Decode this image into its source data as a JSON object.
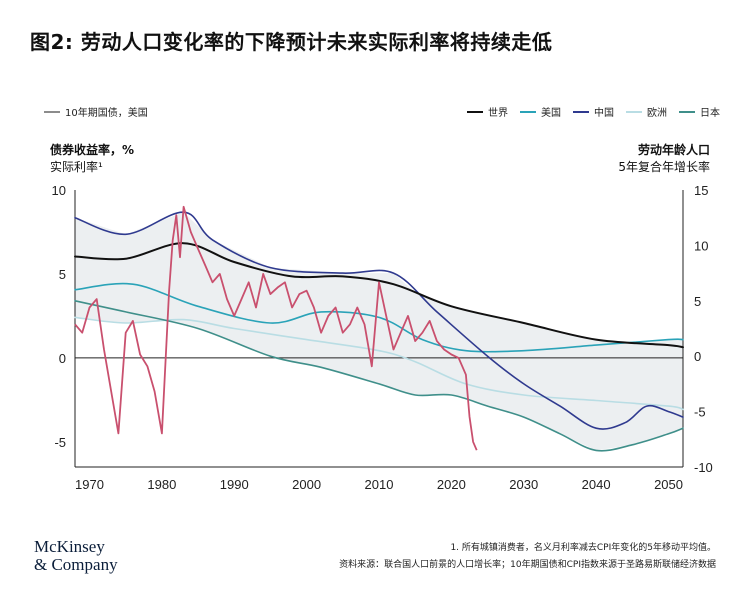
{
  "title": "图2: 劳动人口变化率的下降预计未来实际利率将持续走低",
  "legend_left": {
    "label": "10年期国债，美国",
    "color": "#8c8c8c"
  },
  "legend_right": [
    {
      "label": "世界",
      "color": "#111111"
    },
    {
      "label": "美国",
      "color": "#2aa3b8"
    },
    {
      "label": "中国",
      "color": "#2f3a8f"
    },
    {
      "label": "欧洲",
      "color": "#b9dde4"
    },
    {
      "label": "日本",
      "color": "#3f8f8a"
    }
  ],
  "left_axis_title": {
    "line1": "债券收益率，%",
    "line2": "实际利率¹"
  },
  "right_axis_title": {
    "line1": "劳动年龄人口",
    "line2": "5年复合年增长率"
  },
  "footnote": "1. 所有城镇消费者，名义月利率减去CPI年变化的5年移动平均值。",
  "source": "资料来源：联合国人口前景的人口增长率；10年期国债和CPI指数来源于圣路易斯联储经济数据",
  "logo": {
    "line1": "McKinsey",
    "line2": "& Company"
  },
  "chart_data": {
    "type": "line",
    "x_ticks": [
      1970,
      1980,
      1990,
      2000,
      2010,
      2020,
      2030,
      2040,
      2050
    ],
    "xlim": [
      1968,
      2052
    ],
    "left_axis": {
      "title": "债券收益率，%",
      "subtitle": "实际利率¹",
      "ylim": [
        -6.5,
        10
      ],
      "ticks": [
        10,
        5,
        0,
        -5
      ]
    },
    "right_axis": {
      "title": "劳动年龄人口",
      "subtitle": "5年复合年增长率",
      "ylim": [
        -10,
        15
      ],
      "ticks": [
        15,
        10,
        5,
        0,
        -5,
        -10
      ]
    },
    "series": [
      {
        "name": "10年期国债，美国",
        "axis": "left",
        "color": "#c9506e",
        "x": [
          1968,
          1969,
          1970,
          1971,
          1972,
          1973,
          1974,
          1975,
          1976,
          1977,
          1978,
          1979,
          1980,
          1981,
          1981.5,
          1982,
          1982.5,
          1983,
          1984,
          1985,
          1986,
          1987,
          1988,
          1989,
          1990,
          1991,
          1992,
          1993,
          1994,
          1995,
          1996,
          1997,
          1998,
          1999,
          2000,
          2001,
          2002,
          2003,
          2004,
          2005,
          2006,
          2007,
          2008,
          2009,
          2010,
          2011,
          2012,
          2013,
          2014,
          2015,
          2016,
          2017,
          2018,
          2019,
          2020,
          2021,
          2022,
          2022.5,
          2023,
          2023.5
        ],
        "y": [
          2.0,
          1.5,
          3.0,
          3.5,
          0.5,
          -2.0,
          -4.5,
          1.5,
          2.2,
          0.2,
          -0.5,
          -2.0,
          -4.5,
          4.0,
          7.0,
          8.5,
          6.0,
          9.0,
          7.5,
          6.5,
          5.5,
          4.5,
          5.0,
          3.5,
          2.5,
          3.5,
          4.5,
          3.0,
          5.0,
          3.8,
          4.2,
          4.5,
          3.0,
          3.8,
          4.0,
          3.0,
          1.5,
          2.5,
          3.0,
          1.5,
          2.0,
          3.0,
          2.0,
          -0.5,
          4.5,
          2.5,
          0.5,
          1.5,
          2.5,
          1.0,
          1.5,
          2.2,
          1.0,
          0.5,
          0.2,
          0.0,
          -1.0,
          -3.5,
          -5.0,
          -5.5
        ]
      },
      {
        "name": "世界",
        "axis": "right",
        "color": "#111111",
        "x": [
          1968,
          1975,
          1983,
          1990,
          1998,
          2005,
          2012,
          2020,
          2030,
          2040,
          2050,
          2052
        ],
        "y": [
          9.0,
          8.8,
          10.2,
          8.5,
          7.2,
          7.2,
          6.5,
          4.5,
          3.0,
          1.5,
          1.0,
          0.8
        ]
      },
      {
        "name": "美国",
        "axis": "right",
        "color": "#2aa3b8",
        "x": [
          1968,
          1976,
          1985,
          1995,
          2002,
          2010,
          2016,
          2022,
          2030,
          2040,
          2050,
          2052
        ],
        "y": [
          6.0,
          6.5,
          4.5,
          3.0,
          4.0,
          3.5,
          1.5,
          0.5,
          0.5,
          1.0,
          1.5,
          1.5
        ]
      },
      {
        "name": "中国",
        "axis": "right",
        "color": "#2f3a8f",
        "x": [
          1968,
          1975,
          1983,
          1987,
          1995,
          2005,
          2012,
          2018,
          2025,
          2030,
          2035,
          2040,
          2044,
          2047,
          2050,
          2052
        ],
        "y": [
          12.5,
          11.0,
          13.0,
          10.5,
          8.0,
          7.5,
          7.5,
          4.0,
          0.0,
          -2.5,
          -4.5,
          -6.5,
          -6.0,
          -4.5,
          -5.0,
          -5.5
        ]
      },
      {
        "name": "欧洲",
        "axis": "right",
        "color": "#b9dde4",
        "x": [
          1968,
          1975,
          1983,
          1990,
          2000,
          2010,
          2015,
          2022,
          2030,
          2040,
          2050,
          2052
        ],
        "y": [
          3.5,
          3.0,
          3.3,
          2.5,
          1.5,
          0.5,
          -0.5,
          -2.5,
          -3.5,
          -4.0,
          -4.5,
          -4.8
        ]
      },
      {
        "name": "日本",
        "axis": "right",
        "color": "#3f8f8a",
        "x": [
          1968,
          1975,
          1985,
          1995,
          2002,
          2010,
          2015,
          2020,
          2025,
          2030,
          2035,
          2040,
          2045,
          2050,
          2052
        ],
        "y": [
          5.0,
          4.0,
          2.5,
          0.0,
          -1.0,
          -2.5,
          -3.5,
          -3.5,
          -4.5,
          -5.5,
          -7.0,
          -8.5,
          -8.0,
          -7.0,
          -6.5
        ]
      }
    ]
  }
}
